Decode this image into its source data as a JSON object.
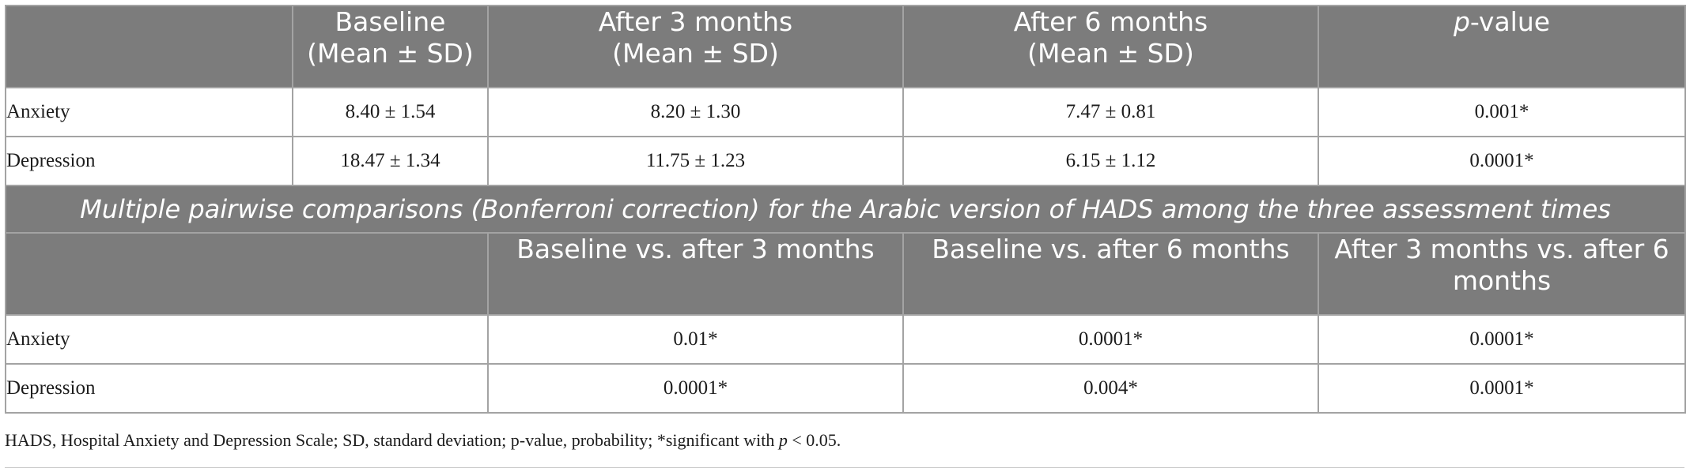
{
  "table": {
    "header": {
      "col1": "",
      "col2_line1": "Baseline",
      "col2_line2": "(Mean ± SD)",
      "col3_line1": "After 3 months",
      "col3_line2": "(Mean ± SD)",
      "col4_line1": "After 6 months",
      "col4_line2": "(Mean ± SD)",
      "col5_p": "p",
      "col5_rest": "-value"
    },
    "rows": [
      {
        "label": "Anxiety",
        "baseline": "8.40 ± 1.54",
        "after3": "8.20 ± 1.30",
        "after6": "7.47 ± 0.81",
        "p": "0.001*"
      },
      {
        "label": "Depression",
        "baseline": "18.47 ± 1.34",
        "after3": "11.75 ± 1.23",
        "after6": "6.15 ± 1.12",
        "p": "0.0001*"
      }
    ],
    "subtitle": "Multiple pairwise comparisons (Bonferroni correction) for the Arabic version of HADS among the three assessment times",
    "header2": {
      "col1": "",
      "col2": "Baseline vs. after 3 months",
      "col3": "Baseline vs. after 6 months",
      "col4": "After 3 months vs. after 6 months"
    },
    "rows2": [
      {
        "label": "Anxiety",
        "b_vs_3": "0.01*",
        "b_vs_6": "0.0001*",
        "m3_vs_6": "0.0001*"
      },
      {
        "label": "Depression",
        "b_vs_3": "0.0001*",
        "b_vs_6": "0.004*",
        "m3_vs_6": "0.0001*"
      }
    ]
  },
  "footnote": {
    "text": "HADS, Hospital Anxiety and Depression Scale; SD, standard deviation; p-value, probability; *significant with ",
    "p": "p",
    "tail": " < 0.05."
  },
  "colors": {
    "header_bg": "#7c7c7c",
    "border": "#a3a3a3",
    "header_text": "#ffffff",
    "body_text": "#1c1c1c"
  }
}
